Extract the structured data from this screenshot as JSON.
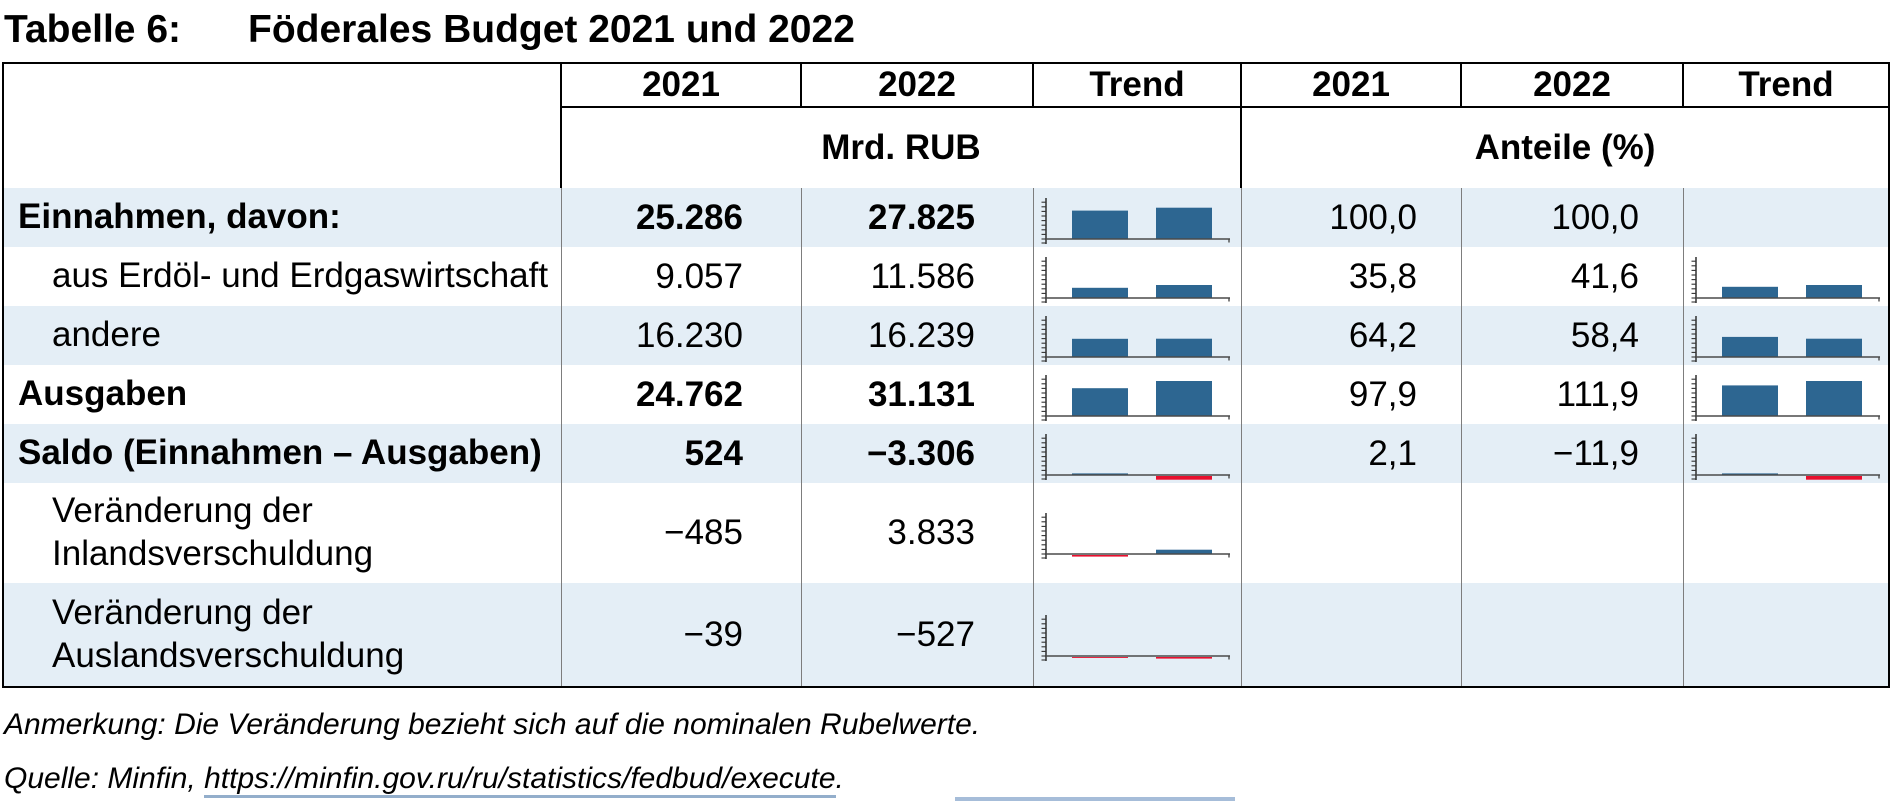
{
  "title": {
    "label": "Tabelle 6:",
    "text": "Föderales Budget 2021 und 2022"
  },
  "table": {
    "col_headers": [
      "2021",
      "2022",
      "Trend",
      "2021",
      "2022",
      "Trend"
    ],
    "group_headers": [
      "Mrd. RUB",
      "Anteile (%)"
    ],
    "chart": {
      "mrd_max": 31131,
      "ant_max": 111.9,
      "bar_color": "#2d6691",
      "neg_color": "#e8102e"
    },
    "rows": [
      {
        "label": "Einnahmen, davon:",
        "mrd_2021": "25.286",
        "mrd_2022": "27.825",
        "trend_mrd": {
          "y2021": 25286,
          "y2022": 27825
        },
        "ant_2021": "100,0",
        "ant_2022": "100,0",
        "trend_ant": null
      },
      {
        "label": "aus Erdöl- und Erdgaswirtschaft",
        "mrd_2021": "9.057",
        "mrd_2022": "11.586",
        "trend_mrd": {
          "y2021": 9057,
          "y2022": 11586
        },
        "ant_2021": "35,8",
        "ant_2022": "41,6",
        "trend_ant": {
          "y2021": 35.8,
          "y2022": 41.6
        }
      },
      {
        "label": "andere",
        "mrd_2021": "16.230",
        "mrd_2022": "16.239",
        "trend_mrd": {
          "y2021": 16230,
          "y2022": 16239
        },
        "ant_2021": "64,2",
        "ant_2022": "58,4",
        "trend_ant": {
          "y2021": 64.2,
          "y2022": 58.4
        }
      },
      {
        "label": "Ausgaben",
        "mrd_2021": "24.762",
        "mrd_2022": "31.131",
        "trend_mrd": {
          "y2021": 24762,
          "y2022": 31131
        },
        "ant_2021": "97,9",
        "ant_2022": "111,9",
        "trend_ant": {
          "y2021": 97.9,
          "y2022": 111.9
        }
      },
      {
        "label": "Saldo (Einnahmen – Ausgaben)",
        "mrd_2021": "524",
        "mrd_2022": "−3.306",
        "trend_mrd": {
          "y2021": 524,
          "y2022": -3306
        },
        "ant_2021": "2,1",
        "ant_2022": "−11,9",
        "trend_ant": {
          "y2021": 2.1,
          "y2022": -11.9
        }
      },
      {
        "label": "Veränderung der Inlandsverschuldung",
        "mrd_2021": "−485",
        "mrd_2022": "3.833",
        "trend_mrd": {
          "y2021": -485,
          "y2022": 3833
        },
        "ant_2021": "",
        "ant_2022": "",
        "trend_ant": null
      },
      {
        "label": "Veränderung der Auslandsverschuldung",
        "mrd_2021": "−39",
        "mrd_2022": "−527",
        "trend_mrd": {
          "y2021": -39,
          "y2022": -527
        },
        "ant_2021": "",
        "ant_2022": "",
        "trend_ant": null
      }
    ]
  },
  "notes": {
    "anmerkung": "Anmerkung: Die Veränderung bezieht sich auf die nominalen Rubelwerte.",
    "quelle_prefix": "Quelle: Minfin, ",
    "quelle_link": "https://minfin.gov.ru/ru/statistics/fedbud/execute",
    "quelle_suffix": "."
  },
  "chart_data": {
    "type": "table",
    "title": "Tabelle 6: Föderales Budget 2021 und 2022",
    "sections": [
      {
        "unit": "Mrd. RUB",
        "columns": [
          "2021",
          "2022",
          "Trend"
        ]
      },
      {
        "unit": "Anteile (%)",
        "columns": [
          "2021",
          "2022",
          "Trend"
        ]
      }
    ],
    "rows": [
      {
        "label": "Einnahmen, davon:",
        "mrd_rub": [
          25286,
          27825
        ],
        "anteile_pct": [
          100.0,
          100.0
        ]
      },
      {
        "label": "aus Erdöl- und Erdgaswirtschaft",
        "mrd_rub": [
          9057,
          11586
        ],
        "anteile_pct": [
          35.8,
          41.6
        ]
      },
      {
        "label": "andere",
        "mrd_rub": [
          16230,
          16239
        ],
        "anteile_pct": [
          64.2,
          58.4
        ]
      },
      {
        "label": "Ausgaben",
        "mrd_rub": [
          24762,
          31131
        ],
        "anteile_pct": [
          97.9,
          111.9
        ]
      },
      {
        "label": "Saldo (Einnahmen – Ausgaben)",
        "mrd_rub": [
          524,
          -3306
        ],
        "anteile_pct": [
          2.1,
          -11.9
        ]
      },
      {
        "label": "Veränderung der Inlandsverschuldung",
        "mrd_rub": [
          -485,
          3833
        ],
        "anteile_pct": [
          null,
          null
        ]
      },
      {
        "label": "Veränderung der Auslandsverschuldung",
        "mrd_rub": [
          -39,
          -527
        ],
        "anteile_pct": [
          null,
          null
        ]
      }
    ],
    "sparkline_style": "mini bar charts, blue = positive, red = negative, common scale per unit section"
  }
}
